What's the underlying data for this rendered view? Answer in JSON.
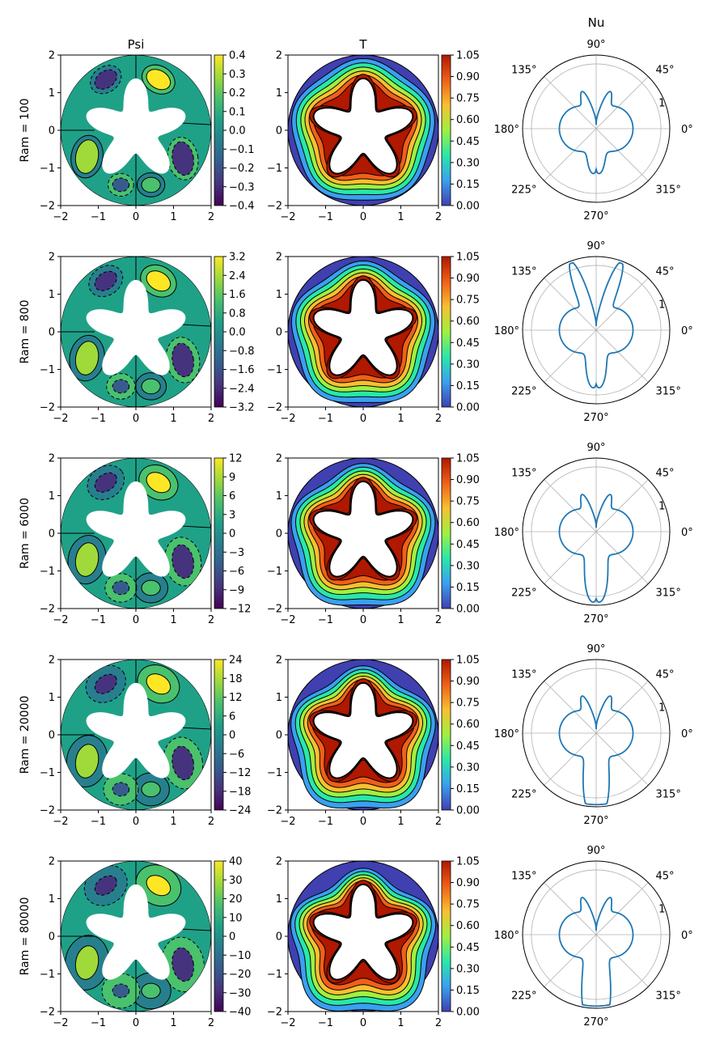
{
  "column_titles": {
    "psi": "Psi",
    "t": "T",
    "nu": "Nu"
  },
  "rows": [
    {
      "label": "Ram = 100",
      "psi_ticks": [
        "0.4",
        "0.3",
        "0.2",
        "0.1",
        "0.0",
        "−0.1",
        "−0.2",
        "−0.3",
        "−0.4"
      ]
    },
    {
      "label": "Ram = 800",
      "psi_ticks": [
        "3.2",
        "2.4",
        "1.6",
        "0.8",
        "0.0",
        "−0.8",
        "−1.6",
        "−2.4",
        "−3.2"
      ]
    },
    {
      "label": "Ram = 6000",
      "psi_ticks": [
        "12",
        "9",
        "6",
        "3",
        "0",
        "−3",
        "−6",
        "−9",
        "−12"
      ]
    },
    {
      "label": "Ram = 20000",
      "psi_ticks": [
        "24",
        "18",
        "12",
        "6",
        "0",
        "−6",
        "−12",
        "−18",
        "−24"
      ]
    },
    {
      "label": "Ram = 80000",
      "psi_ticks": [
        "40",
        "30",
        "20",
        "10",
        "0",
        "−10",
        "−20",
        "−30",
        "−40"
      ]
    }
  ],
  "t_ticks": [
    "1.05",
    "0.90",
    "0.75",
    "0.60",
    "0.45",
    "0.30",
    "0.15",
    "0.00"
  ],
  "axis_ticks": [
    "−2",
    "−1",
    "0",
    "1",
    "2"
  ],
  "polar_labels": {
    "a0": "0°",
    "a45": "45°",
    "a90": "90°",
    "a135": "135°",
    "a180": "180°",
    "a225": "225°",
    "a270": "270°",
    "a315": "315°",
    "r1": "1"
  },
  "colors": {
    "viridis": [
      "#440154",
      "#46337e",
      "#365c8d",
      "#277f8e",
      "#1fa187",
      "#4ac16d",
      "#9fda3a",
      "#fde725"
    ],
    "temperature": [
      "#4040b0",
      "#3aa0f0",
      "#28e8a8",
      "#a0f040",
      "#f8c030",
      "#f06018",
      "#b01800"
    ],
    "nu_line": "#1f77b4"
  },
  "chart_data": [
    {
      "type": "heatmap",
      "title": "Psi",
      "ylabel": "Ram = 100",
      "xlim": [
        -2,
        2
      ],
      "ylim": [
        -2,
        2
      ],
      "colorbar": [
        -0.4,
        0.4
      ]
    },
    {
      "type": "heatmap",
      "title": "T",
      "xlim": [
        -2,
        2
      ],
      "ylim": [
        -2,
        2
      ],
      "colorbar": [
        0.0,
        1.05
      ]
    },
    {
      "type": "line",
      "title": "Nu",
      "polar": true,
      "rticks": [
        1
      ]
    },
    {
      "type": "heatmap",
      "ylabel": "Ram = 800",
      "colorbar": [
        -3.2,
        3.2
      ]
    },
    {
      "type": "heatmap",
      "colorbar": [
        0.0,
        1.05
      ]
    },
    {
      "type": "line",
      "polar": true
    },
    {
      "type": "heatmap",
      "ylabel": "Ram = 6000",
      "colorbar": [
        -12,
        12
      ]
    },
    {
      "type": "heatmap",
      "colorbar": [
        0.0,
        1.05
      ]
    },
    {
      "type": "line",
      "polar": true
    },
    {
      "type": "heatmap",
      "ylabel": "Ram = 20000",
      "colorbar": [
        -24,
        24
      ]
    },
    {
      "type": "heatmap",
      "colorbar": [
        0.0,
        1.05
      ]
    },
    {
      "type": "line",
      "polar": true
    },
    {
      "type": "heatmap",
      "ylabel": "Ram = 80000",
      "colorbar": [
        -40,
        40
      ]
    },
    {
      "type": "heatmap",
      "colorbar": [
        0.0,
        1.05
      ]
    },
    {
      "type": "line",
      "polar": true
    }
  ]
}
